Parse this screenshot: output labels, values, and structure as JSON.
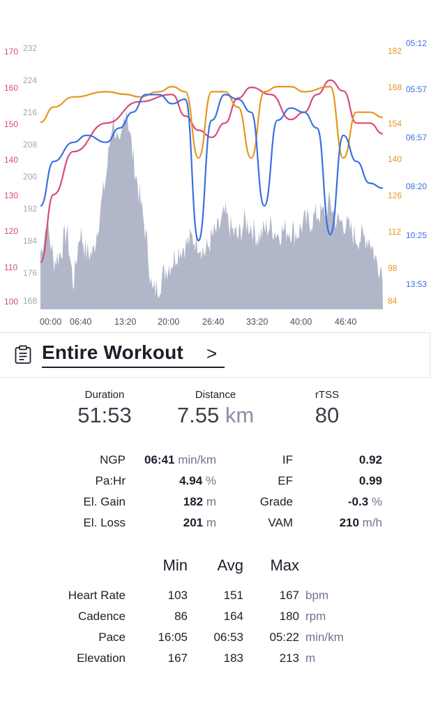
{
  "chart_data": {
    "type": "line",
    "series": [
      {
        "y_axis": "left-outer",
        "color": "#d64a7e",
        "x": [
          0,
          2,
          5,
          10,
          15,
          20,
          22,
          24,
          26,
          28,
          30,
          32,
          35,
          38,
          40,
          42,
          44,
          46,
          48,
          50,
          52
        ],
        "values": [
          111,
          130,
          142,
          150,
          156,
          158,
          152,
          148,
          146,
          150,
          157,
          160,
          158,
          151,
          153,
          158,
          162,
          159,
          150,
          150,
          147
        ]
      },
      {
        "y_axis": "right-inner",
        "color": "#e6961d",
        "x": [
          0,
          2,
          5,
          10,
          13,
          15,
          18,
          20,
          22,
          24,
          26,
          28,
          30,
          32,
          34,
          36,
          38,
          40,
          44,
          46,
          48,
          50,
          52
        ],
        "values": [
          154,
          160,
          164,
          166,
          165,
          164,
          166,
          168,
          166,
          140,
          166,
          166,
          160,
          140,
          166,
          168,
          168,
          166,
          168,
          140,
          158,
          158,
          156
        ]
      },
      {
        "y_axis": "right-outer",
        "color": "#3b6fe0",
        "x": [
          0,
          2,
          5,
          7,
          10,
          12,
          14,
          16,
          18,
          20,
          22,
          24,
          26,
          28,
          30,
          32,
          34,
          36,
          38,
          40,
          42,
          44,
          46,
          48,
          50,
          52
        ],
        "values": [
          "09:00",
          "07:30",
          "07:00",
          "06:50",
          "07:00",
          "06:40",
          "06:20",
          "06:00",
          "06:00",
          "06:10",
          "06:05",
          "10:40",
          "06:30",
          "06:00",
          "06:05",
          "06:20",
          "09:00",
          "06:30",
          "06:15",
          "06:20",
          "06:40",
          "10:20",
          "06:50",
          "07:30",
          "08:10",
          "08:20"
        ]
      }
    ],
    "area": {
      "color": "#a9afc2",
      "name": "elevation"
    },
    "y_axes": {
      "hr": [
        "170",
        "160",
        "150",
        "140",
        "130",
        "120",
        "110",
        "100"
      ],
      "elevation": [
        "232",
        "224",
        "216",
        "208",
        "200",
        "192",
        "184",
        "176",
        "168"
      ],
      "cadence": [
        "182",
        "168",
        "154",
        "140",
        "126",
        "112",
        "98",
        "84"
      ],
      "pace": [
        "05:12",
        "05:57",
        "06:57",
        "08:20",
        "10:25",
        "13:53"
      ]
    },
    "x_ticks": [
      "00:00",
      "06:40",
      "13:20",
      "20:00",
      "26:40",
      "33:20",
      "40:00",
      "46:40"
    ]
  },
  "section": {
    "title": "Entire Workout",
    "chevron": ">",
    "icon": "clipboard-icon"
  },
  "summary": {
    "duration": {
      "label": "Duration",
      "value": "51:53"
    },
    "distance": {
      "label": "Distance",
      "value": "7.55",
      "unit": "km"
    },
    "rtss": {
      "label": "rTSS",
      "value": "80"
    }
  },
  "metrics_left": [
    {
      "label": "NGP",
      "value": "06:41",
      "unit": "min/km"
    },
    {
      "label": "Pa:Hr",
      "value": "4.94",
      "unit": "%"
    },
    {
      "label": "El. Gain",
      "value": "182",
      "unit": "m"
    },
    {
      "label": "El. Loss",
      "value": "201",
      "unit": "m"
    }
  ],
  "metrics_right": [
    {
      "label": "IF",
      "value": "0.92",
      "unit": ""
    },
    {
      "label": "EF",
      "value": "0.99",
      "unit": ""
    },
    {
      "label": "Grade",
      "value": "-0.3",
      "unit": "%"
    },
    {
      "label": "VAM",
      "value": "210",
      "unit": "m/h"
    }
  ],
  "stats_table": {
    "headers": {
      "min": "Min",
      "avg": "Avg",
      "max": "Max"
    },
    "rows": [
      {
        "label": "Heart Rate",
        "min": "103",
        "avg": "151",
        "max": "167",
        "unit": "bpm"
      },
      {
        "label": "Cadence",
        "min": "86",
        "avg": "164",
        "max": "180",
        "unit": "rpm"
      },
      {
        "label": "Pace",
        "min": "16:05",
        "avg": "06:53",
        "max": "05:22",
        "unit": "min/km"
      },
      {
        "label": "Elevation",
        "min": "167",
        "avg": "183",
        "max": "213",
        "unit": "m"
      }
    ]
  }
}
